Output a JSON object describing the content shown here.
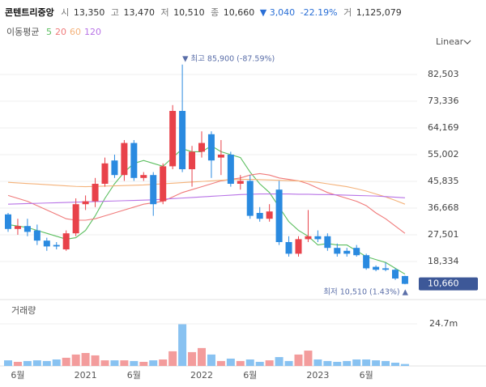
{
  "header": {
    "name": "콘텐트리중앙",
    "open_label": "시",
    "open": "13,350",
    "high_label": "고",
    "high": "13,470",
    "low_label": "저",
    "low": "10,510",
    "close_label": "종",
    "close": "10,660",
    "change": "▼ 3,040",
    "change_pct": "-22.19%",
    "volume_label": "거",
    "volume": "1,125,079"
  },
  "scale_label": "Linear",
  "chart_data": [
    {
      "type": "candlestick",
      "legend_title": "이동평균",
      "categories": [
        null,
        "6월",
        null,
        null,
        null,
        null,
        null,
        null,
        "2021",
        null,
        null,
        null,
        null,
        "6월",
        null,
        null,
        null,
        null,
        null,
        null,
        "2022",
        null,
        null,
        null,
        null,
        "6월",
        null,
        null,
        null,
        null,
        null,
        null,
        "2023",
        null,
        null,
        null,
        null,
        "6월",
        null,
        null,
        null,
        null
      ],
      "ohlc": {
        "open": [
          34500,
          29500,
          30500,
          29000,
          25500,
          24000,
          22500,
          28000,
          38000,
          39000,
          45000,
          53000,
          48000,
          59000,
          47000,
          48000,
          39000,
          51000,
          70000,
          50000,
          56000,
          62000,
          54000,
          55000,
          45000,
          46000,
          35000,
          33000,
          43000,
          25000,
          21000,
          26000,
          27000,
          27000,
          23000,
          22000,
          23000,
          20500,
          16500,
          16000,
          15500,
          13350
        ],
        "high": [
          35000,
          33000,
          33000,
          31000,
          26500,
          25000,
          29000,
          40000,
          41000,
          47000,
          54000,
          55000,
          60000,
          60000,
          49000,
          49000,
          52000,
          72000,
          85900,
          58000,
          63000,
          63000,
          60000,
          56000,
          48000,
          48000,
          37000,
          38000,
          46000,
          27000,
          27000,
          36000,
          29000,
          28000,
          24500,
          23000,
          24000,
          21000,
          17000,
          18000,
          16000,
          13470
        ],
        "low": [
          28500,
          27500,
          27000,
          24000,
          22000,
          22500,
          22000,
          27000,
          36000,
          37000,
          44000,
          47000,
          46000,
          46000,
          46000,
          34000,
          38000,
          50000,
          49000,
          44000,
          54000,
          47000,
          48000,
          44000,
          43000,
          33000,
          32000,
          32000,
          24000,
          20000,
          20000,
          25000,
          25000,
          22000,
          20000,
          20000,
          20000,
          15500,
          15000,
          15000,
          12000,
          10510
        ],
        "close": [
          29500,
          30500,
          28500,
          25500,
          23500,
          23500,
          28000,
          38000,
          39000,
          45000,
          52000,
          48000,
          59000,
          47000,
          48000,
          38000,
          51000,
          70000,
          50000,
          56000,
          59000,
          53000,
          55000,
          45000,
          46000,
          34000,
          33000,
          35500,
          25000,
          21000,
          26000,
          27000,
          26000,
          23000,
          21000,
          21000,
          20500,
          16000,
          15500,
          15500,
          12500,
          10660
        ]
      },
      "up_color": "#e8424a",
      "down_color": "#2a8ae0",
      "series": [
        {
          "name": "5",
          "color": "#5cbf60",
          "values": [
            31000,
            30500,
            30000,
            29000,
            28000,
            27000,
            26000,
            26500,
            29000,
            34000,
            40000,
            45000,
            49000,
            52000,
            53000,
            52000,
            51000,
            54000,
            57000,
            56000,
            56000,
            58000,
            56000,
            55000,
            54000,
            49000,
            45000,
            42000,
            37000,
            32000,
            29000,
            27000,
            24000,
            24500,
            24000,
            24000,
            22000,
            20000,
            19000,
            18000,
            16000,
            14000
          ]
        },
        {
          "name": "20",
          "color": "#f07a7a",
          "values": [
            41000,
            40000,
            39000,
            37500,
            36000,
            34500,
            33000,
            32500,
            32500,
            33000,
            34000,
            35000,
            36000,
            37000,
            38000,
            38500,
            39000,
            40500,
            42000,
            43000,
            44000,
            45000,
            46000,
            46500,
            47000,
            48000,
            48500,
            48000,
            47000,
            46500,
            46000,
            45000,
            43500,
            42000,
            41000,
            40000,
            39000,
            37500,
            35000,
            33000,
            30500,
            28000
          ]
        },
        {
          "name": "60",
          "color": "#f4b27a",
          "values": [
            45500,
            45300,
            45100,
            44900,
            44700,
            44500,
            44300,
            44100,
            44000,
            44100,
            44200,
            44300,
            44400,
            44500,
            44600,
            44800,
            45000,
            45200,
            45400,
            45600,
            45800,
            46000,
            46200,
            46400,
            46500,
            46500,
            46400,
            46300,
            46200,
            46100,
            46000,
            45800,
            45500,
            45000,
            44500,
            44000,
            43300,
            42500,
            41500,
            40500,
            39300,
            38000
          ]
        },
        {
          "name": "120",
          "color": "#b873e6",
          "values": [
            38000,
            38100,
            38200,
            38300,
            38400,
            38500,
            38600,
            38700,
            38800,
            38900,
            39000,
            39100,
            39200,
            39300,
            39400,
            39500,
            39700,
            39900,
            40100,
            40300,
            40500,
            40700,
            40900,
            41100,
            41300,
            41400,
            41500,
            41500,
            41500,
            41500,
            41400,
            41400,
            41300,
            41300,
            41200,
            41100,
            41000,
            40900,
            40800,
            40600,
            40400,
            40200
          ]
        }
      ],
      "ylim": [
        7497,
        91392
      ],
      "yticks": [
        {
          "value": 82503,
          "label": "82,503"
        },
        {
          "value": 73336,
          "label": "73,336"
        },
        {
          "value": 64169,
          "label": "64,169"
        },
        {
          "value": 55002,
          "label": "55,002"
        },
        {
          "value": 45835,
          "label": "45,835"
        },
        {
          "value": 36668,
          "label": "36,668"
        },
        {
          "value": 27501,
          "label": "27,501"
        },
        {
          "value": 18334,
          "label": "18,334"
        }
      ],
      "grid": true,
      "last_price": 10660,
      "last_price_label": "10,660",
      "annotations": {
        "high": "▼ 최고 85,900 (-87.59%)",
        "low": "최저 10,510 (1.43%) ▲"
      }
    },
    {
      "type": "bar",
      "title": "거래량",
      "values": [
        3300000,
        2400000,
        2900000,
        3300000,
        2900000,
        3800000,
        4800000,
        6700000,
        7600000,
        6200000,
        3300000,
        3300000,
        3300000,
        2900000,
        2400000,
        3300000,
        3800000,
        8600000,
        24900000,
        8100000,
        10500000,
        6700000,
        2900000,
        4300000,
        2900000,
        3800000,
        2400000,
        3300000,
        5200000,
        2900000,
        6700000,
        9000000,
        3800000,
        2900000,
        2400000,
        2900000,
        3800000,
        3800000,
        3300000,
        2900000,
        1900000,
        1125079
      ],
      "ylim": [
        0,
        31800000
      ],
      "yticks": [
        {
          "value": 24700000,
          "label": "24.7m"
        }
      ],
      "up_color": "#f39c9c",
      "down_color": "#88c2f1"
    }
  ]
}
